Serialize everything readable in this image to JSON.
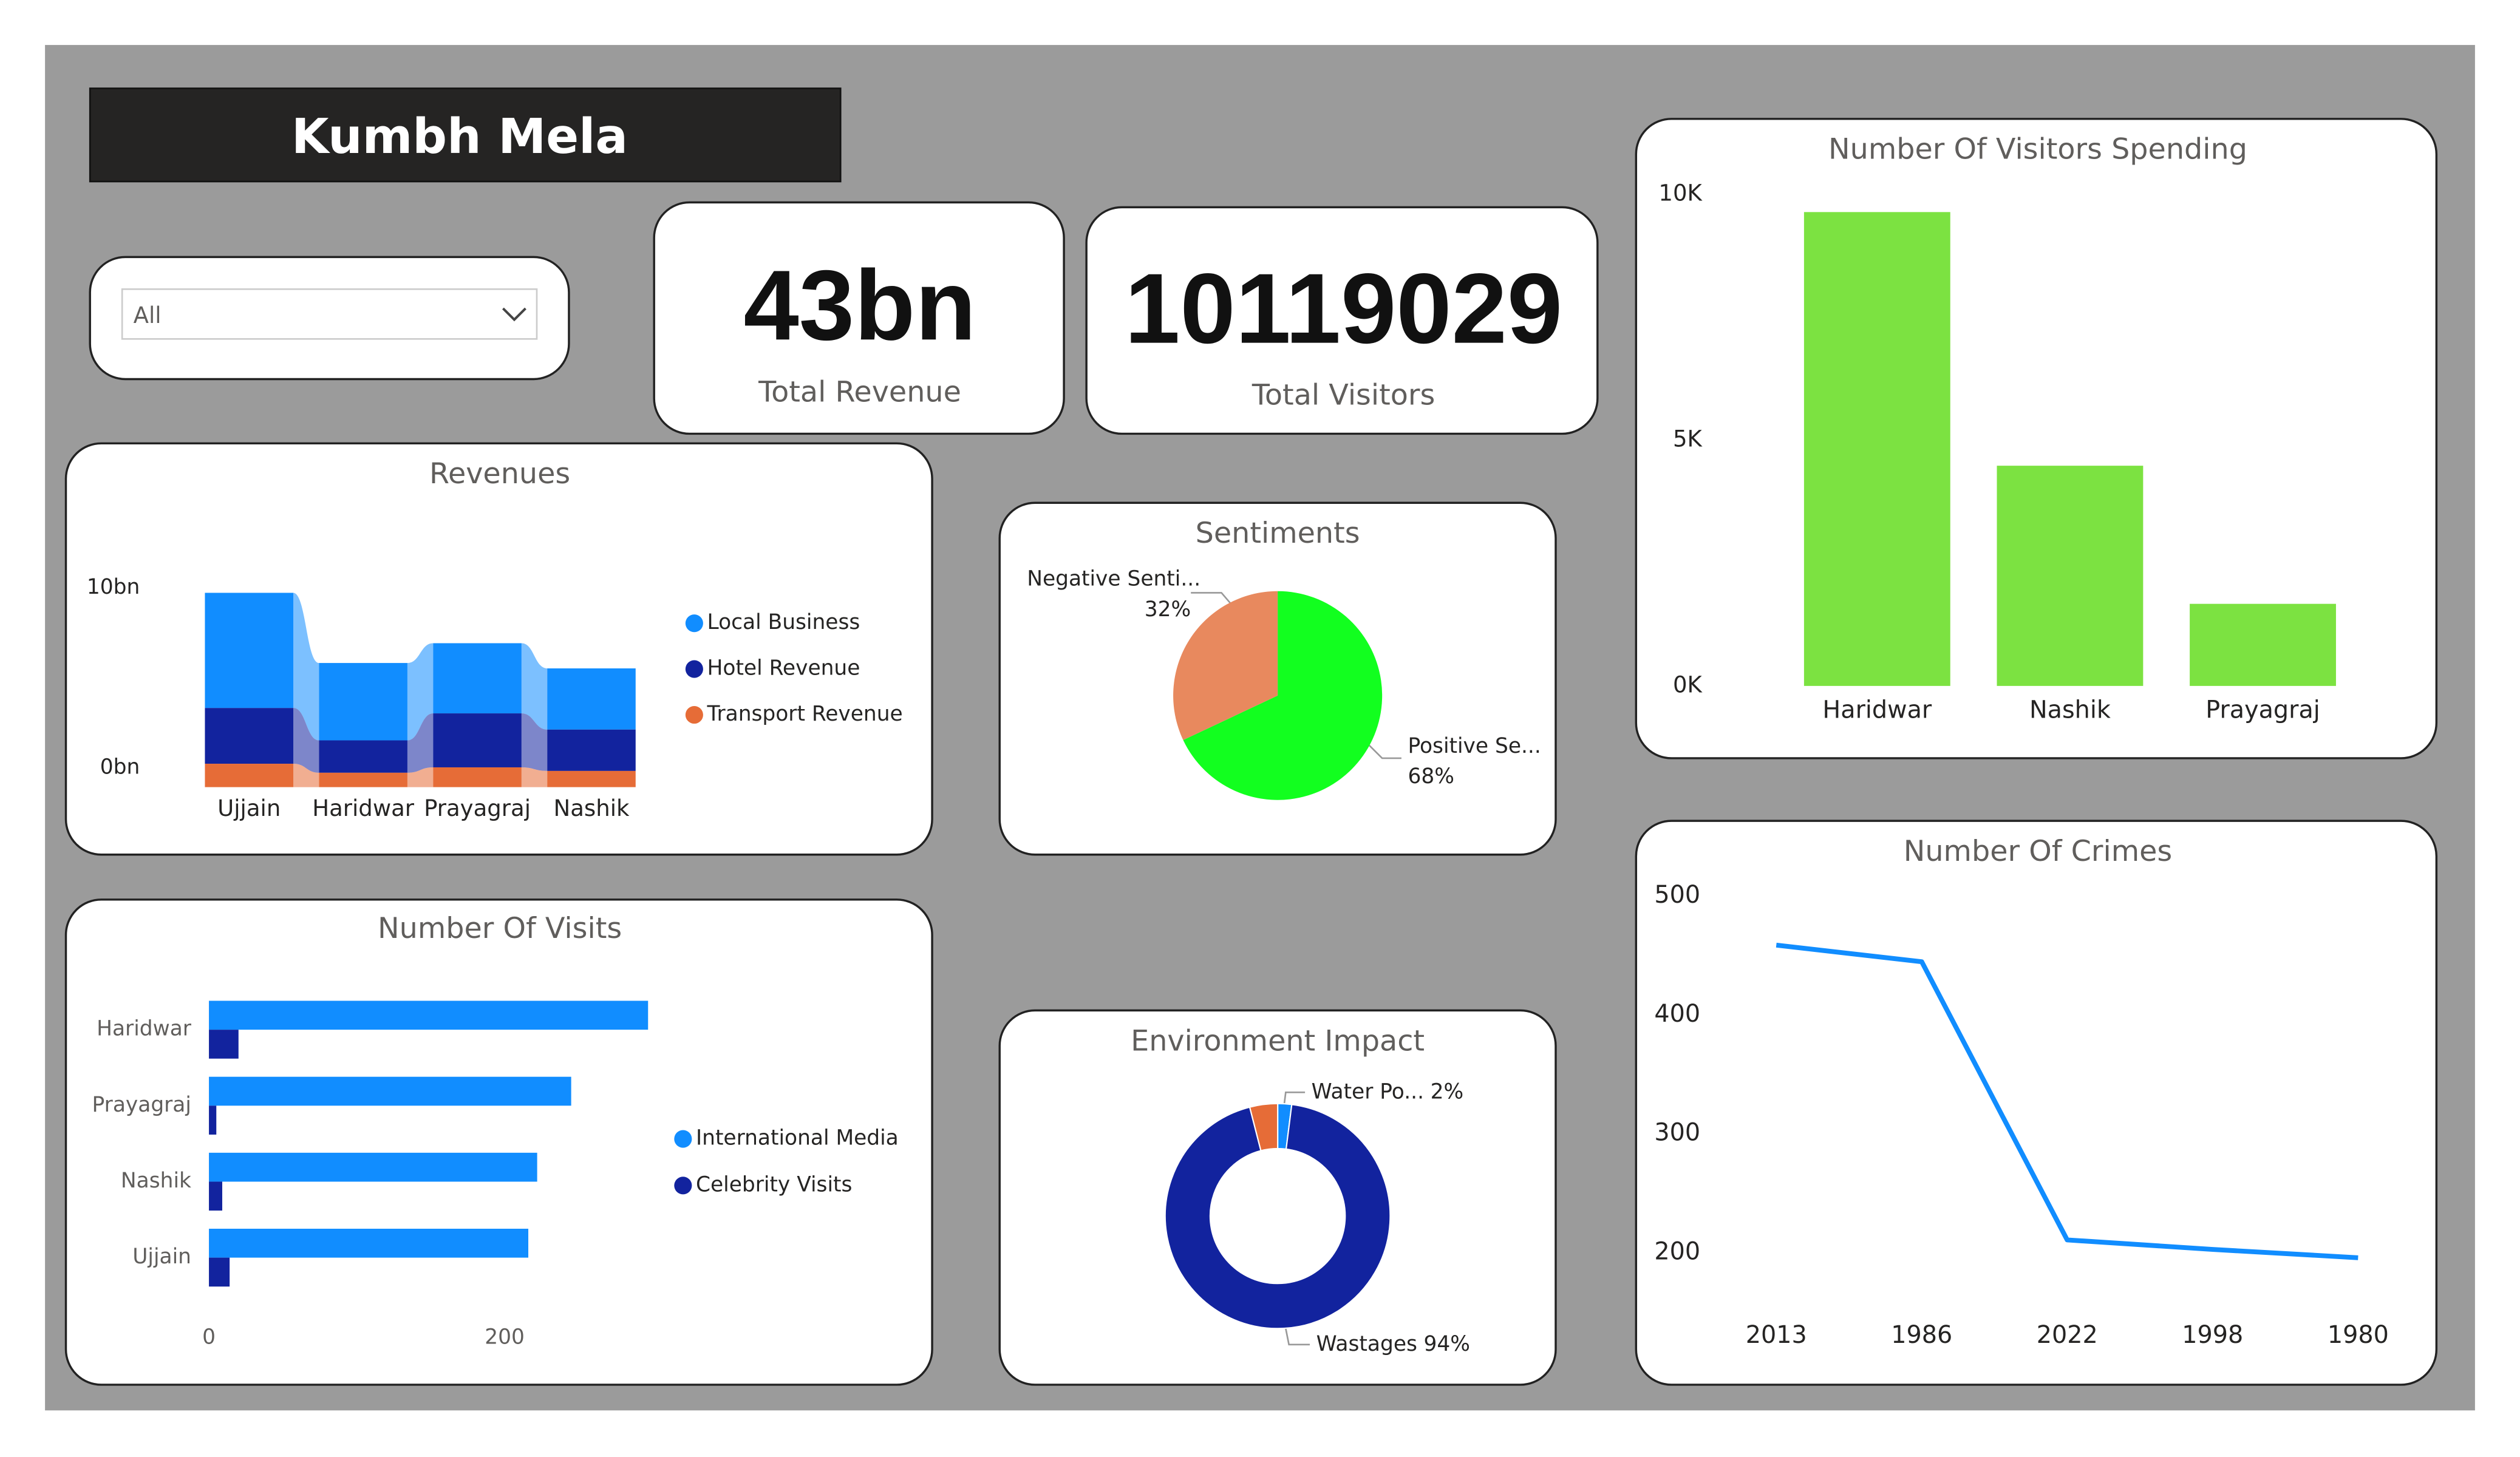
{
  "header": {
    "title": "Kumbh Mela"
  },
  "slicer": {
    "selected": "All"
  },
  "cards": [
    {
      "value": "43bn",
      "label": "Total Revenue"
    },
    {
      "value": "10119029",
      "label": "Total Visitors"
    }
  ],
  "chart_data": [
    {
      "type": "ribbon",
      "title": "Revenues",
      "categories": [
        "Ujjain",
        "Haridwar",
        "Prayagraj",
        "Nashik"
      ],
      "series": [
        {
          "name": "Local Business",
          "color": "#118DFF",
          "values": [
            6.4,
            4.3,
            3.9,
            3.4
          ]
        },
        {
          "name": "Hotel Revenue",
          "color": "#12239E",
          "values": [
            3.1,
            1.8,
            3.0,
            2.3
          ]
        },
        {
          "name": "Transport Revenue",
          "color": "#E66C37",
          "values": [
            1.3,
            0.8,
            1.1,
            0.9
          ]
        }
      ],
      "ylim": [
        0,
        11
      ],
      "yticks": [
        {
          "value": 0,
          "label": "0bn"
        },
        {
          "value": 10,
          "label": "10bn"
        }
      ]
    },
    {
      "type": "pie",
      "title": "Sentiments",
      "categories": [
        "Negative Senti...",
        "Positive Se..."
      ],
      "values": [
        32,
        68
      ],
      "value_labels": [
        "32%",
        "68%"
      ],
      "colors": [
        "#E8895E",
        "#12FF1F"
      ]
    },
    {
      "type": "bar",
      "title": "Number Of Visitors Spending",
      "categories": [
        "Haridwar",
        "Nashik",
        "Prayagraj"
      ],
      "values": [
        9640,
        4480,
        1670
      ],
      "color": "#7CE241",
      "ylim": [
        0,
        10000
      ],
      "yticks": [
        {
          "value": 0,
          "label": "0K"
        },
        {
          "value": 5000,
          "label": "5K"
        },
        {
          "value": 10000,
          "label": "10K"
        }
      ]
    },
    {
      "type": "hbar",
      "title": "Number Of Visits",
      "categories": [
        "Haridwar",
        "Prayagraj",
        "Nashik",
        "Ujjain"
      ],
      "series": [
        {
          "name": "International Media",
          "color": "#118DFF",
          "values": [
            297,
            245,
            222,
            216
          ]
        },
        {
          "name": "Celebrity Visits",
          "color": "#12239E",
          "values": [
            20,
            5,
            9,
            14
          ]
        }
      ],
      "xlim": [
        0,
        300
      ],
      "xticks": [
        0,
        200
      ]
    },
    {
      "type": "donut",
      "title": "Environment Impact",
      "categories": [
        "Water Po...",
        "Wastages",
        null
      ],
      "values": [
        2,
        94,
        4
      ],
      "value_labels": [
        "2%",
        "94%",
        null
      ],
      "colors": [
        "#118DFF",
        "#12239E",
        "#E66C37"
      ]
    },
    {
      "type": "line",
      "title": "Number Of Crimes",
      "categories": [
        "2013",
        "1986",
        "2022",
        "1998",
        "1980"
      ],
      "values": [
        459,
        445,
        211,
        203,
        196
      ],
      "color": "#118DFF",
      "ylim": [
        180,
        510
      ],
      "yticks": [
        200,
        300,
        400,
        500
      ]
    }
  ]
}
